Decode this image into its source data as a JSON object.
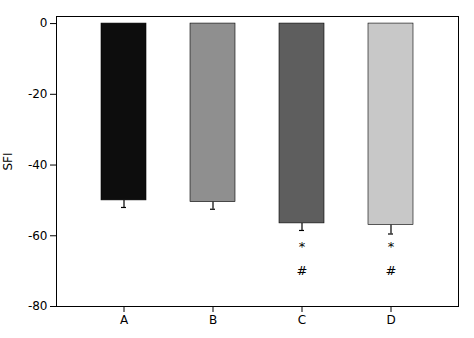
{
  "chart_data": {
    "type": "bar",
    "categories": [
      "A",
      "B",
      "C",
      "D"
    ],
    "values": [
      -50.0,
      -50.5,
      -56.5,
      -57.0
    ],
    "errors": [
      2.0,
      2.0,
      2.0,
      2.5
    ],
    "colors": [
      "#0d0d0d",
      "#8f8f8f",
      "#5e5e5e",
      "#c8c8c8"
    ],
    "ylabel": "SFI",
    "ylim": [
      -80,
      2
    ],
    "yticks": [
      -80,
      -60,
      -40,
      -20,
      0
    ],
    "annotations": [
      {
        "x": "C",
        "y": -63.0,
        "text": "*"
      },
      {
        "x": "C",
        "y": -70.0,
        "text": "#"
      },
      {
        "x": "D",
        "y": -63.0,
        "text": "*"
      },
      {
        "x": "D",
        "y": -70.0,
        "text": "#"
      }
    ],
    "grid": false
  }
}
